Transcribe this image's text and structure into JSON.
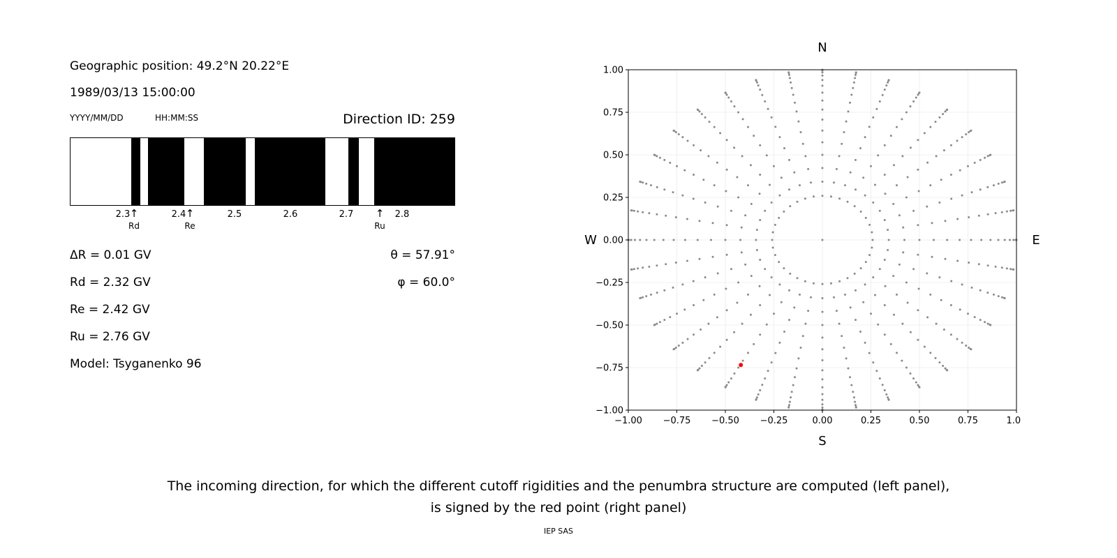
{
  "left_panel": {
    "geo_position": "Geographic position: 49.2°N 20.22°E",
    "datetime": "1989/03/13 15:00:00",
    "date_format_label": "YYYY/MM/DD",
    "time_format_label": "HH:MM:SS",
    "direction_id": "Direction ID: 259",
    "info_lines": {
      "delta_r": "ΔR = 0.01 GV",
      "rd": "Rd = 2.32 GV",
      "re": "Re = 2.42 GV",
      "ru": "Ru = 2.76 GV",
      "model": "Model: Tsyganenko 96"
    },
    "angles": {
      "theta": "θ = 57.91°",
      "phi": "φ = 60.0°"
    }
  },
  "caption": {
    "line1": "The incoming direction, for which the different cutoff rigidities and the penumbra structure are computed (left panel),",
    "line2": "is signed by the red point (right panel)",
    "credit": "IEP SAS"
  },
  "chart_data": [
    {
      "type": "bar",
      "name": "penumbra-structure",
      "title": "Direction ID: 259",
      "x_unit": "GV",
      "x_range": [
        2.205,
        2.895
      ],
      "band_color": "#000000",
      "background": "#ffffff",
      "arrow_glyph": "↑",
      "allowed_bands": [
        [
          2.314,
          2.33
        ],
        [
          2.344,
          2.41
        ],
        [
          2.445,
          2.52
        ],
        [
          2.536,
          2.663
        ],
        [
          2.704,
          2.723
        ],
        [
          2.751,
          2.895
        ]
      ],
      "xticks": [
        {
          "value": 2.3,
          "label": "2.3"
        },
        {
          "value": 2.4,
          "label": "2.4"
        },
        {
          "value": 2.5,
          "label": "2.5"
        },
        {
          "value": 2.6,
          "label": "2.6"
        },
        {
          "value": 2.7,
          "label": "2.7"
        },
        {
          "value": 2.8,
          "label": "2.8"
        }
      ],
      "markers": [
        {
          "label": "Rd",
          "value": 2.32
        },
        {
          "label": "Re",
          "value": 2.42
        },
        {
          "label": "Ru",
          "value": 2.76
        }
      ],
      "values": {
        "delta_R_GV": 0.01,
        "Rd_GV": 2.32,
        "Re_GV": 2.42,
        "Ru_GV": 2.76,
        "theta_deg": 57.91,
        "phi_deg": 60.0,
        "model": "Tsyganenko 96"
      }
    },
    {
      "type": "scatter",
      "name": "incoming-direction-map",
      "xlim": [
        -1,
        1
      ],
      "ylim": [
        -1,
        1
      ],
      "grid": true,
      "grid_color": "#ebebeb",
      "direction_labels": {
        "top": "N",
        "bottom": "S",
        "left": "W",
        "right": "E"
      },
      "xticks": [
        {
          "value": -1.0,
          "label": "−1.00"
        },
        {
          "value": -0.75,
          "label": "−0.75"
        },
        {
          "value": -0.5,
          "label": "−0.50"
        },
        {
          "value": -0.25,
          "label": "−0.25"
        },
        {
          "value": 0.0,
          "label": "0.00"
        },
        {
          "value": 0.25,
          "label": "0.25"
        },
        {
          "value": 0.5,
          "label": "0.50"
        },
        {
          "value": 0.75,
          "label": "0.75"
        },
        {
          "value": 1.0,
          "label": "1.00"
        }
      ],
      "yticks": [
        {
          "value": -1.0,
          "label": "−1.00"
        },
        {
          "value": -0.75,
          "label": "−0.75"
        },
        {
          "value": -0.5,
          "label": "−0.50"
        },
        {
          "value": -0.25,
          "label": "−0.25"
        },
        {
          "value": 0.0,
          "label": "0.00"
        },
        {
          "value": 0.25,
          "label": "0.25"
        },
        {
          "value": 0.5,
          "label": "0.50"
        },
        {
          "value": 0.75,
          "label": "0.75"
        },
        {
          "value": 1.0,
          "label": "1.00"
        }
      ],
      "series": [
        {
          "name": "direction-grid-points",
          "color": "#8a8a8a",
          "marker_radius_px": 1.5,
          "generator": {
            "azimuth_start_deg": 0,
            "azimuth_step_deg": 10,
            "azimuth_count": 36,
            "zenith_start_deg": 15,
            "zenith_step_deg": 5,
            "zenith_end_deg": 90,
            "radius_rule": "sin(zenith)",
            "include_center": true
          }
        },
        {
          "name": "selected-direction-point",
          "color": "#ff0000",
          "marker_radius_px": 3,
          "points": [
            [
              -0.42,
              -0.735
            ]
          ]
        }
      ]
    }
  ]
}
